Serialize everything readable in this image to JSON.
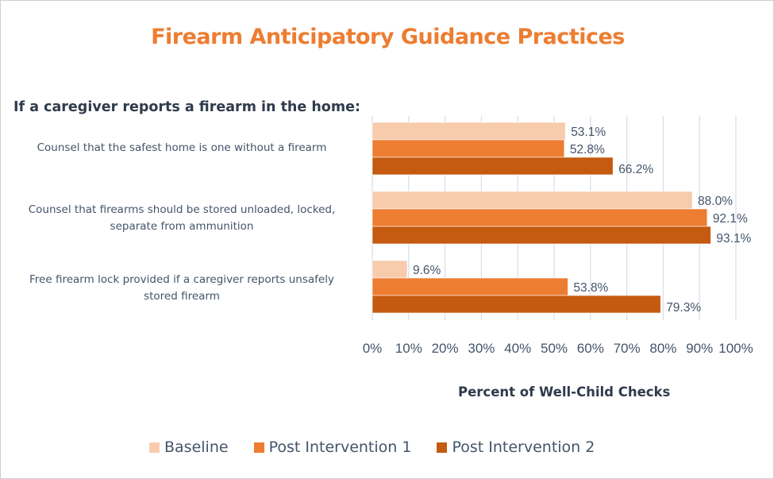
{
  "chart_data": {
    "type": "bar",
    "orientation": "horizontal",
    "title": "Firearm Anticipatory Guidance Practices",
    "subtitle": "If a caregiver reports a firearm in the home:",
    "xlabel": "Percent of Well-Child Checks",
    "ylabel": "",
    "xlim": [
      0,
      100
    ],
    "x_ticks": [
      "0%",
      "10%",
      "20%",
      "30%",
      "40%",
      "50%",
      "60%",
      "70%",
      "80%",
      "90%",
      "100%"
    ],
    "grid": true,
    "legend_position": "bottom",
    "categories": [
      [
        "Counsel that the safest home is one without a firearm"
      ],
      [
        "Counsel that firearms should be stored unloaded, locked,",
        "separate from ammunition"
      ],
      [
        "Free firearm lock provided if a caregiver reports unsafely",
        "stored firearm"
      ]
    ],
    "series": [
      {
        "name": "Baseline",
        "color": "#F8CBAD",
        "values": [
          53.1,
          88.0,
          9.6
        ],
        "labels": [
          "53.1%",
          "88.0%",
          "9.6%"
        ]
      },
      {
        "name": "Post Intervention 1",
        "color": "#ED7D31",
        "values": [
          52.8,
          92.1,
          53.8
        ],
        "labels": [
          "52.8%",
          "92.1%",
          "53.8%"
        ]
      },
      {
        "name": "Post Intervention 2",
        "color": "#C55A11",
        "values": [
          66.2,
          93.1,
          79.3
        ],
        "labels": [
          "66.2%",
          "93.1%",
          "79.3%"
        ]
      }
    ]
  }
}
